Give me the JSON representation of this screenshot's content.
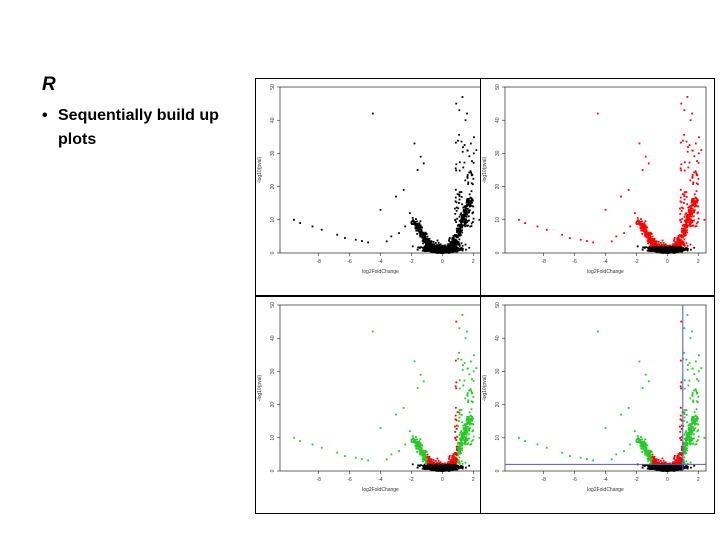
{
  "slide": {
    "title": "R",
    "bullet_glyph": "•",
    "bullet_text": "Sequentially build up plots"
  },
  "colors": {
    "base": "#000000",
    "significant": "#ff0000",
    "fold_change": "#22cc22",
    "threshold_line": "#5555cc"
  },
  "chart_data": [
    {
      "type": "scatter",
      "panel": "top-left",
      "xlabel": "log2FoldChange",
      "ylabel": "-log10(pval)",
      "xlim": [
        -10.5,
        2.5
      ],
      "ylim": [
        0,
        50
      ],
      "xticks": [
        -8,
        -6,
        -4,
        -2,
        0,
        2
      ],
      "yticks": [
        0,
        10,
        20,
        30,
        40,
        50
      ],
      "coloring": "base"
    },
    {
      "type": "scatter",
      "panel": "top-right",
      "xlabel": "log2FoldChange",
      "ylabel": "-log10(pval)",
      "xlim": [
        -10.5,
        2.5
      ],
      "ylim": [
        0,
        50
      ],
      "xticks": [
        -8,
        -6,
        -4,
        -2,
        0,
        2
      ],
      "yticks": [
        0,
        10,
        20,
        30,
        40,
        50
      ],
      "coloring": "significant"
    },
    {
      "type": "scatter",
      "panel": "bottom-left",
      "xlabel": "log2FoldChange",
      "ylabel": "-log10(pval)",
      "xlim": [
        -10.5,
        2.5
      ],
      "ylim": [
        0,
        50
      ],
      "xticks": [
        -8,
        -6,
        -4,
        -2,
        0,
        2
      ],
      "yticks": [
        0,
        10,
        20,
        30,
        40,
        50
      ],
      "coloring": "significant+fold_change"
    },
    {
      "type": "scatter",
      "panel": "bottom-right",
      "xlabel": "log2FoldChange",
      "ylabel": "-log10(pval)",
      "xlim": [
        -10.5,
        2.5
      ],
      "ylim": [
        0,
        50
      ],
      "xticks": [
        -8,
        -6,
        -4,
        -2,
        0,
        2
      ],
      "yticks": [
        0,
        10,
        20,
        30,
        40,
        50
      ],
      "coloring": "significant+fold_change",
      "vline_x": 1,
      "hline_y": 2
    }
  ]
}
